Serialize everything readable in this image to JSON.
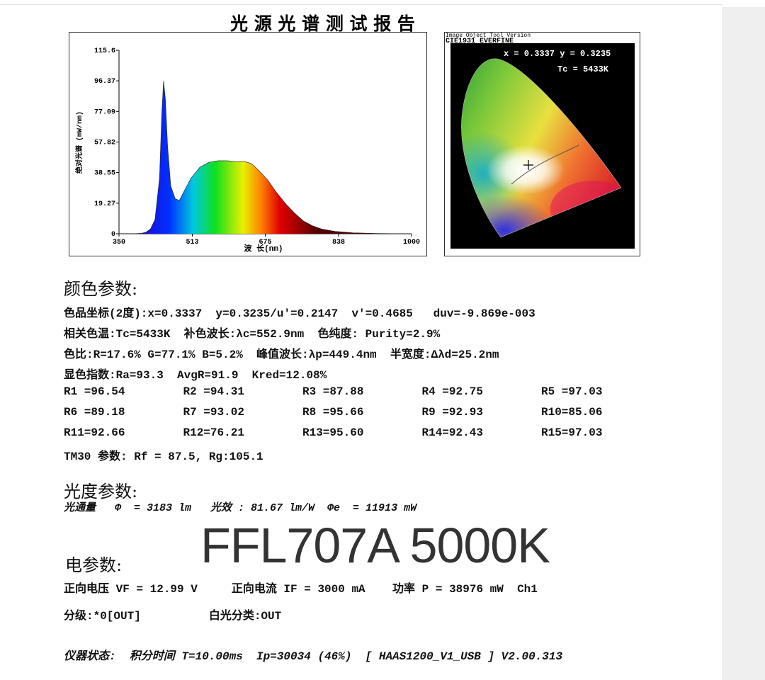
{
  "header": {
    "title": "光 源 光 谱 测 试 报 告"
  },
  "chart_data": {
    "type": "area",
    "x_label": "波 长(nm)",
    "y_label": "绝对光谱 (mW/nm)",
    "x": [
      350,
      380,
      400,
      410,
      420,
      430,
      440,
      445,
      449,
      453,
      458,
      465,
      475,
      484,
      495,
      510,
      530,
      550,
      570,
      590,
      610,
      630,
      645,
      660,
      680,
      700,
      720,
      740,
      760,
      780,
      800,
      830,
      870,
      920,
      1000
    ],
    "values": [
      0,
      0,
      0.3,
      1,
      3,
      9,
      35,
      75,
      96.37,
      85,
      55,
      30,
      22,
      21,
      27,
      35,
      42,
      45,
      46,
      46,
      45.5,
      45.5,
      44,
      40,
      34,
      26,
      19,
      13,
      8,
      5,
      3,
      1.5,
      0.6,
      0.2,
      0
    ],
    "xlim": [
      350,
      1000
    ],
    "ylim": [
      0,
      115.6
    ],
    "xticks": [
      350,
      513,
      675,
      838,
      1000
    ],
    "yticks": [
      0,
      19.27,
      38.55,
      57.82,
      77.09,
      96.37,
      115.6
    ]
  },
  "cie": {
    "watermark": "Image Object Tool Version",
    "title": "CIE1931 EVERFINE",
    "coords": "x = 0.3337 y = 0.3235",
    "tc": "Tc = 5433K"
  },
  "color_params": {
    "heading": "颜色参数:",
    "lines": [
      "色品坐标(2度):x=0.3337  y=0.3235/u'=0.2147  v'=0.4685   duv=-9.869e-003",
      "相关色温:Tc=5433K  补色波长:λc=552.9nm  色纯度: Purity=2.9%",
      "色比:R=17.6% G=77.1% B=5.2%  峰值波长:λp=449.4nm  半宽度:Δλd=25.2nm",
      "显色指数:Ra=93.3  AvgR=91.9  Kred=12.08%"
    ],
    "r_values": [
      [
        "R1 =96.54",
        "R2 =94.31",
        "R3 =87.88",
        "R4 =92.75",
        "R5 =97.03"
      ],
      [
        "R6 =89.18",
        "R7 =93.02",
        "R8 =95.66",
        "R9 =92.93",
        "R10=85.06"
      ],
      [
        "R11=92.66",
        "R12=76.21",
        "R13=95.60",
        "R14=92.43",
        "R15=97.03"
      ]
    ],
    "tm30": "TM30 参数: Rf = 87.5, Rg:105.1"
  },
  "photometric": {
    "heading": "光度参数:",
    "line": "光通量   Φ  = 3183 lm   光效 : 81.67 lm/W  Φe  = 11913 mW"
  },
  "overlay": "FFL707A 5000K",
  "electrical": {
    "heading": "电参数:",
    "lines": [
      "正向电压 VF = 12.99 V     正向电流 IF = 3000 mA    功率 P = 38976 mW  Ch1",
      "分级:*0[OUT]          白光分类:OUT"
    ]
  },
  "status": "仪器状态:  积分时间 T=10.00ms  Ip=30034 (46%)  [ HAAS1200_V1_USB ] V2.00.313"
}
